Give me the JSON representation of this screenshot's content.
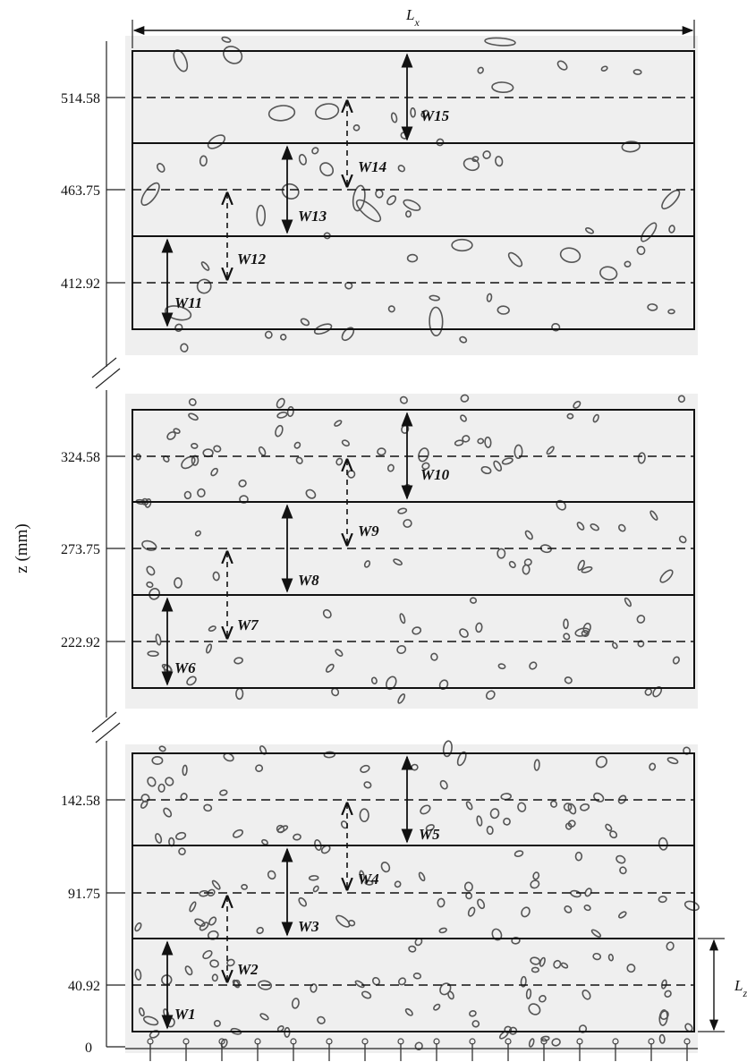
{
  "figure": {
    "z_axis_label": "z (mm)",
    "lx_label": "L",
    "lx_sub": "x",
    "lz_label": "L",
    "lz_sub": "z",
    "ticks": [
      "0",
      "40.92",
      "91.75",
      "142.58",
      "222.92",
      "273.75",
      "324.58",
      "412.92",
      "463.75",
      "514.58"
    ],
    "windows": [
      {
        "label": "W1"
      },
      {
        "label": "W2"
      },
      {
        "label": "W3"
      },
      {
        "label": "W4"
      },
      {
        "label": "W5"
      },
      {
        "label": "W6"
      },
      {
        "label": "W7"
      },
      {
        "label": "W8"
      },
      {
        "label": "W9"
      },
      {
        "label": "W10"
      },
      {
        "label": "W11"
      },
      {
        "label": "W12"
      },
      {
        "label": "W13"
      },
      {
        "label": "W14"
      },
      {
        "label": "W15"
      }
    ]
  }
}
